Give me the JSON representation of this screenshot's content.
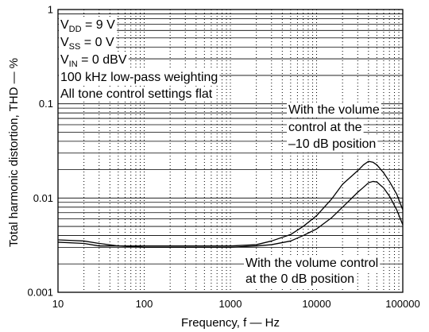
{
  "chart_data": {
    "type": "line",
    "xlabel": "Frequency, f — Hz",
    "ylabel": "Total harmonic distortion, THD — %",
    "x_scale": "log",
    "y_scale": "log",
    "xlim": [
      10,
      100000
    ],
    "ylim": [
      0.001,
      1
    ],
    "x_ticks": [
      "10",
      "100",
      "1000",
      "10000",
      "100000"
    ],
    "y_ticks": [
      "0.001",
      "0.01",
      "0.1",
      "1"
    ],
    "grid": true,
    "line_color": "#000000",
    "x": [
      10,
      20,
      30,
      50,
      100,
      200,
      500,
      1000,
      2000,
      3000,
      5000,
      7000,
      10000,
      15000,
      20000,
      30000,
      35000,
      40000,
      45000,
      50000,
      60000,
      70000,
      85000,
      100000
    ],
    "series": [
      {
        "label": [
          "With the volume",
          "control at the",
          "–10 dB position"
        ],
        "values": [
          0.0036,
          0.0035,
          0.0033,
          0.0031,
          0.0031,
          0.0031,
          0.0031,
          0.0031,
          0.0032,
          0.0035,
          0.0041,
          0.005,
          0.0065,
          0.0098,
          0.014,
          0.0195,
          0.0225,
          0.0245,
          0.024,
          0.0225,
          0.0185,
          0.015,
          0.011,
          0.0075
        ]
      },
      {
        "label": [
          "With the volume control",
          "at the 0 dB position"
        ],
        "values": [
          0.0034,
          0.0033,
          0.0031,
          0.0031,
          0.003,
          0.003,
          0.003,
          0.003,
          0.0031,
          0.0032,
          0.0035,
          0.004,
          0.0047,
          0.0062,
          0.008,
          0.0115,
          0.013,
          0.0145,
          0.015,
          0.0148,
          0.0128,
          0.0105,
          0.0075,
          0.0052
        ]
      }
    ],
    "conditions": [
      {
        "main": "V",
        "sub": "DD",
        "rest": " = 9 V"
      },
      {
        "main": "V",
        "sub": "SS",
        "rest": " = 0 V"
      },
      {
        "main": "V",
        "sub": "IN",
        "rest": " = 0 dBV"
      },
      {
        "main": "100 kHz low-pass weighting"
      },
      {
        "main": "All tone control settings flat"
      }
    ]
  }
}
